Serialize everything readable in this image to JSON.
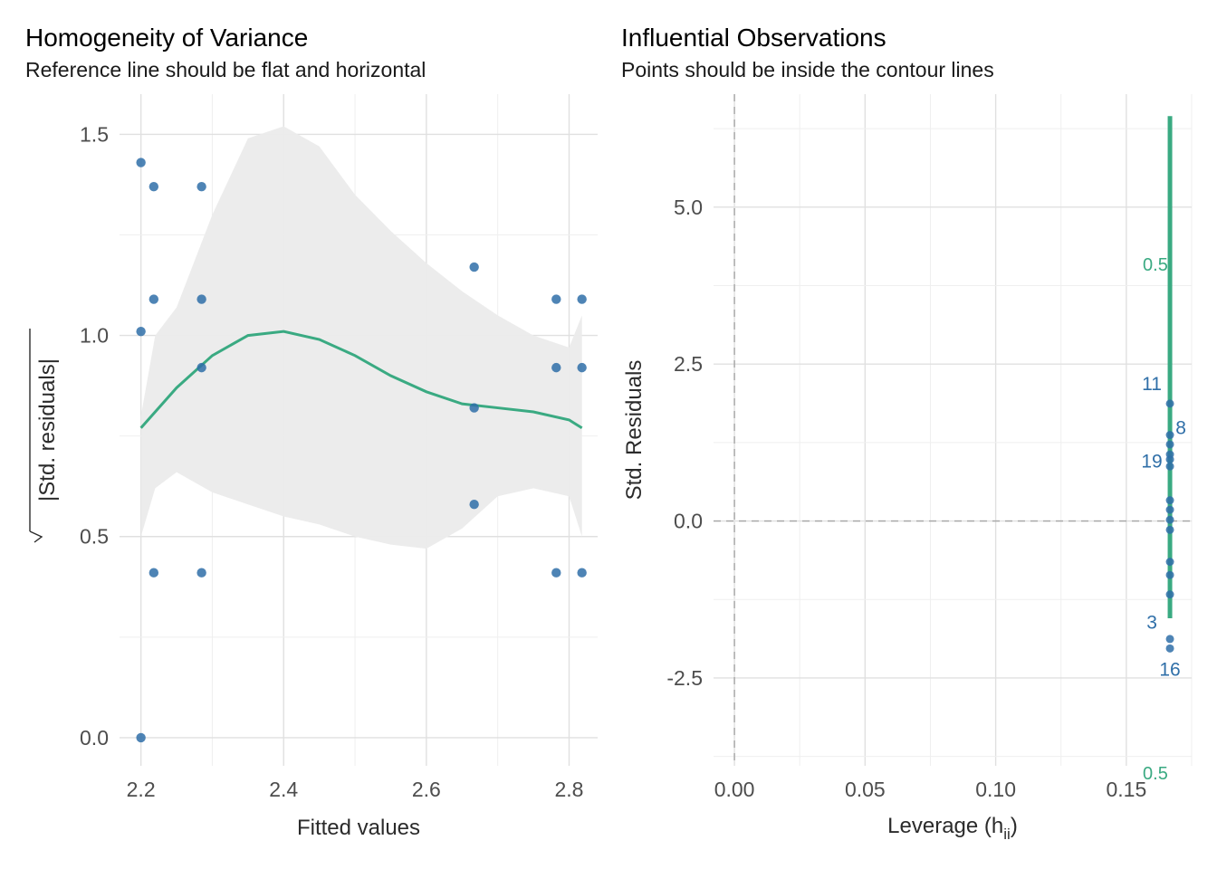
{
  "chart_data": [
    {
      "type": "scatter",
      "title": "Homogeneity of Variance",
      "subtitle": "Reference line should be flat and horizontal",
      "xlabel": "Fitted values",
      "ylabel": "|Std. residuals|",
      "xlim": [
        2.17,
        2.84
      ],
      "ylim": [
        -0.07,
        1.6
      ],
      "xticks": [
        "2.2",
        "2.4",
        "2.6",
        "2.8"
      ],
      "yticks": [
        "0.0",
        "0.5",
        "1.0",
        "1.5"
      ],
      "points": [
        {
          "x": 2.2,
          "y": 1.43
        },
        {
          "x": 2.2,
          "y": 1.01
        },
        {
          "x": 2.2,
          "y": 0.0
        },
        {
          "x": 2.218,
          "y": 1.37
        },
        {
          "x": 2.218,
          "y": 1.09
        },
        {
          "x": 2.218,
          "y": 0.41
        },
        {
          "x": 2.285,
          "y": 1.37
        },
        {
          "x": 2.285,
          "y": 1.09
        },
        {
          "x": 2.285,
          "y": 0.92
        },
        {
          "x": 2.285,
          "y": 0.41
        },
        {
          "x": 2.667,
          "y": 1.17
        },
        {
          "x": 2.667,
          "y": 0.82
        },
        {
          "x": 2.667,
          "y": 0.58
        },
        {
          "x": 2.782,
          "y": 1.09
        },
        {
          "x": 2.782,
          "y": 0.92
        },
        {
          "x": 2.782,
          "y": 0.41
        },
        {
          "x": 2.818,
          "y": 1.09
        },
        {
          "x": 2.818,
          "y": 0.92
        },
        {
          "x": 2.818,
          "y": 0.41
        }
      ],
      "smooth": [
        [
          2.2,
          0.77
        ],
        [
          2.25,
          0.87
        ],
        [
          2.3,
          0.95
        ],
        [
          2.35,
          1.0
        ],
        [
          2.4,
          1.01
        ],
        [
          2.45,
          0.99
        ],
        [
          2.5,
          0.95
        ],
        [
          2.55,
          0.9
        ],
        [
          2.6,
          0.86
        ],
        [
          2.65,
          0.83
        ],
        [
          2.7,
          0.82
        ],
        [
          2.75,
          0.81
        ],
        [
          2.8,
          0.79
        ],
        [
          2.818,
          0.77
        ]
      ],
      "band_upper": [
        [
          2.2,
          0.8
        ],
        [
          2.22,
          1.0
        ],
        [
          2.25,
          1.07
        ],
        [
          2.3,
          1.3
        ],
        [
          2.35,
          1.49
        ],
        [
          2.4,
          1.52
        ],
        [
          2.45,
          1.47
        ],
        [
          2.5,
          1.35
        ],
        [
          2.55,
          1.26
        ],
        [
          2.6,
          1.18
        ],
        [
          2.65,
          1.11
        ],
        [
          2.7,
          1.05
        ],
        [
          2.75,
          1.0
        ],
        [
          2.8,
          0.97
        ],
        [
          2.818,
          1.05
        ]
      ],
      "band_lower": [
        [
          2.2,
          0.5
        ],
        [
          2.22,
          0.62
        ],
        [
          2.25,
          0.66
        ],
        [
          2.3,
          0.61
        ],
        [
          2.35,
          0.58
        ],
        [
          2.4,
          0.55
        ],
        [
          2.45,
          0.53
        ],
        [
          2.5,
          0.5
        ],
        [
          2.55,
          0.48
        ],
        [
          2.6,
          0.47
        ],
        [
          2.65,
          0.52
        ],
        [
          2.7,
          0.6
        ],
        [
          2.75,
          0.62
        ],
        [
          2.8,
          0.6
        ],
        [
          2.818,
          0.5
        ]
      ],
      "colors": {
        "points": "#2f6fa8",
        "line": "#3aaa82",
        "band": "#ebebeb",
        "grid": "#e0e0e0"
      }
    },
    {
      "type": "scatter",
      "title": "Influential Observations",
      "subtitle": "Points should be inside the contour lines",
      "xlabel": "Leverage (h",
      "xlabel_sub": "ii",
      "xlabel_end": ")",
      "ylabel": "Std. Residuals",
      "xlim": [
        -0.008,
        0.175
      ],
      "ylim": [
        -3.9,
        6.8
      ],
      "xticks": [
        "0.00",
        "0.05",
        "0.10",
        "0.15"
      ],
      "yticks": [
        "-2.5",
        "0.0",
        "2.5",
        "5.0"
      ],
      "leverage": 0.1667,
      "points": [
        1.87,
        1.37,
        1.22,
        1.06,
        0.98,
        0.87,
        0.33,
        0.18,
        0.02,
        -0.14,
        -0.65,
        -0.86,
        -1.17,
        -1.88,
        -2.03
      ],
      "contour_y": [
        -1.55,
        6.45
      ],
      "contour_labels": [
        {
          "text": "0.5",
          "y": 4.1
        },
        {
          "text": "0.5",
          "y": -4.0
        }
      ],
      "point_labels": [
        {
          "text": "11",
          "y": 2.2
        },
        {
          "text": "8",
          "y": 1.5
        },
        {
          "text": "19",
          "y": 0.97
        },
        {
          "text": "3",
          "y": -1.6
        },
        {
          "text": "16",
          "y": -2.35
        }
      ],
      "colors": {
        "points": "#2f6fa8",
        "line": "#3aaa82",
        "ref": "#a6a6a6",
        "grid": "#e0e0e0"
      }
    }
  ]
}
